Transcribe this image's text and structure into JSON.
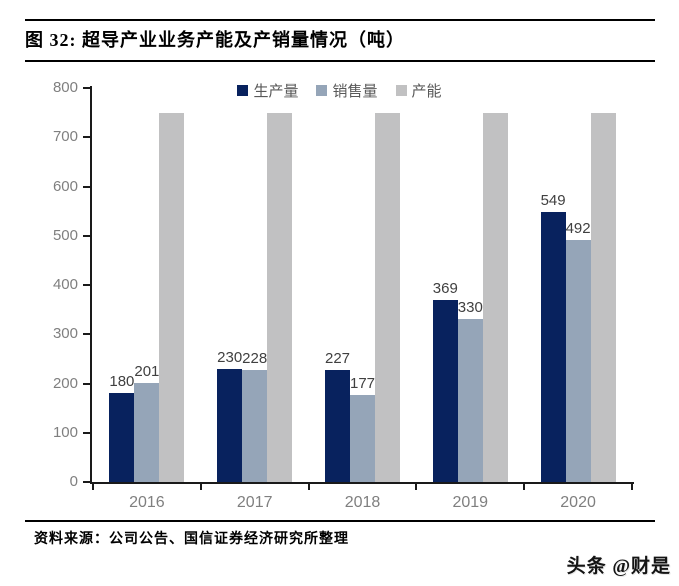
{
  "header": {
    "title": "图 32: 超导产业业务产能及产销量情况（吨）"
  },
  "footer": {
    "source": "资料来源：公司公告、国信证券经济研究所整理",
    "watermark": "头条 @财是"
  },
  "chart_data": {
    "type": "bar",
    "title": "图 32: 超导产业业务产能及产销量情况（吨）",
    "categories": [
      "2016",
      "2017",
      "2018",
      "2019",
      "2020"
    ],
    "series": [
      {
        "key": "production",
        "name": "生产量",
        "color": "#08225e",
        "values": [
          180,
          230,
          227,
          369,
          549
        ],
        "data_labels": true
      },
      {
        "key": "sales",
        "name": "销售量",
        "color": "#95a5b8",
        "values": [
          201,
          228,
          177,
          330,
          492
        ],
        "data_labels": true
      },
      {
        "key": "capacity",
        "name": "产能",
        "color": "#c1c1c2",
        "values": [
          750,
          750,
          750,
          750,
          750
        ],
        "data_labels": false
      }
    ],
    "xlabel": "",
    "ylabel": "",
    "ylim": [
      0,
      800
    ],
    "ytick_interval": 100,
    "grid": false,
    "legend_position": "top",
    "colors": {
      "axis": "#1a1a1a",
      "axis_tick_labels": "#7f7f7f",
      "data_labels": "#404040",
      "legend_text": "#595959"
    }
  }
}
